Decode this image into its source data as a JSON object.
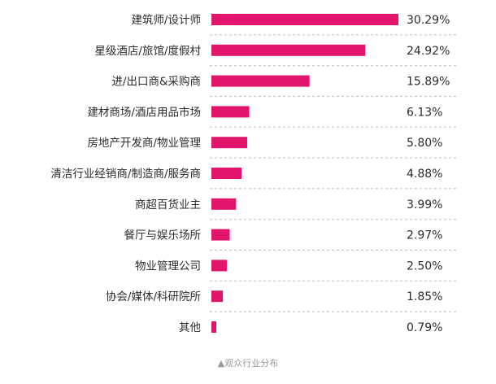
{
  "chart_data": {
    "type": "bar",
    "orientation": "horizontal",
    "categories": [
      "建筑师/设计师",
      "星级酒店/旅馆/度假村",
      "进/出口商&采购商",
      "建材商场/酒店用品市场",
      "房地产开发商/物业管理",
      "清洁行业经销商/制造商/服务商",
      "商超百货业主",
      "餐厅与娱乐场所",
      "物业管理公司",
      "协会/媒体/科研院所",
      "其他"
    ],
    "values": [
      30.29,
      24.92,
      15.89,
      6.13,
      5.8,
      4.88,
      3.99,
      2.97,
      2.5,
      1.85,
      0.79
    ],
    "value_labels": [
      "30.29%",
      "24.92%",
      "15.89%",
      "6.13%",
      "5.80%",
      "4.88%",
      "3.99%",
      "2.97%",
      "2.50%",
      "1.85%",
      "0.79%"
    ],
    "bar_color": "#e0156b",
    "separator_color": "#bdbdbd",
    "grid": false,
    "legend": "none"
  },
  "caption": "▲观众行业分布"
}
